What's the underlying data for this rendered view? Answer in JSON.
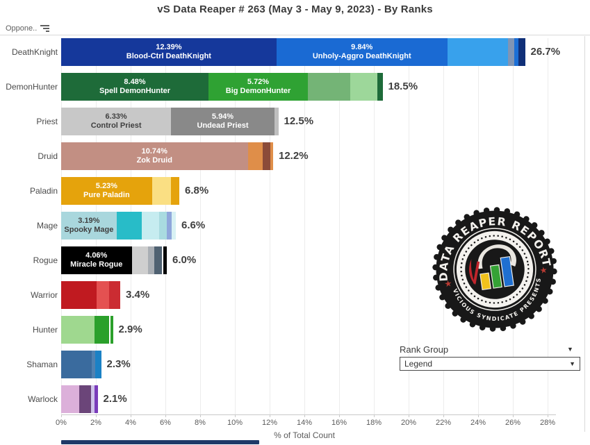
{
  "header": {
    "title": "vS Data Reaper #  263 (May 3 - May 9, 2023) - By Ranks",
    "column_label": "Oppone.."
  },
  "controls": {
    "rank_group_label": "Rank Group",
    "dropdown_value": "Legend",
    "caret": "▼"
  },
  "logo": {
    "top_text": "DATA REAPER REPORT",
    "bottom_text": "VICIOUS SYNDICATE PRESENTS",
    "star": "★",
    "ring_color": "#181818",
    "star_color": "#b93a32",
    "bar_colors": [
      "#f2c21c",
      "#35a235",
      "#1f6fd0"
    ],
    "scythe_color": "#c0252c"
  },
  "chart_data": {
    "type": "bar",
    "orientation": "horizontal",
    "title": "vS Data Reaper #  263 (May 3 - May 9, 2023) - By Ranks",
    "xlabel": "% of Total Count",
    "x_ticks": [
      "0%",
      "2%",
      "4%",
      "6%",
      "8%",
      "10%",
      "12%",
      "14%",
      "16%",
      "18%",
      "20%",
      "22%",
      "24%",
      "26%",
      "28%"
    ],
    "x_tick_step_pct": 2,
    "x_max_pct": 28.5,
    "grid": true,
    "rows": [
      {
        "class": "DeathKnight",
        "total_label": "26.7%",
        "total": 26.7,
        "segments": [
          {
            "value": 12.39,
            "pct_label": "12.39%",
            "name": "Blood-Ctrl DeathKnight",
            "color": "#15389b",
            "text_color": "#ffffff"
          },
          {
            "value": 9.84,
            "pct_label": "9.84%",
            "name": "Unholy-Aggro DeathKnight",
            "color": "#1a6ad3",
            "text_color": "#ffffff"
          },
          {
            "value": 3.5,
            "color": "#38a1ec"
          },
          {
            "value": 0.35,
            "color": "#8095b5"
          },
          {
            "value": 0.25,
            "color": "#1b6fd6"
          },
          {
            "value": 0.37,
            "color": "#102f78"
          }
        ]
      },
      {
        "class": "DemonHunter",
        "total_label": "18.5%",
        "total": 18.5,
        "segments": [
          {
            "value": 8.48,
            "pct_label": "8.48%",
            "name": "Spell DemonHunter",
            "color": "#1e6b39",
            "text_color": "#ffffff"
          },
          {
            "value": 5.72,
            "pct_label": "5.72%",
            "name": "Big DemonHunter",
            "color": "#2fa233",
            "text_color": "#ffffff"
          },
          {
            "value": 2.45,
            "color": "#74b476"
          },
          {
            "value": 1.55,
            "color": "#9dd79a"
          },
          {
            "value": 0.3,
            "color": "#1e6b39"
          }
        ]
      },
      {
        "class": "Priest",
        "total_label": "12.5%",
        "total": 12.5,
        "segments": [
          {
            "value": 6.33,
            "pct_label": "6.33%",
            "name": "Control Priest",
            "color": "#c8c8c8",
            "text_color": "#3f3f3f"
          },
          {
            "value": 5.94,
            "pct_label": "5.94%",
            "name": "Undead Priest",
            "color": "#898989",
            "text_color": "#ffffff"
          },
          {
            "value": 0.23,
            "color": "#bfbfbf"
          }
        ]
      },
      {
        "class": "Druid",
        "total_label": "12.2%",
        "total": 12.2,
        "segments": [
          {
            "value": 10.74,
            "pct_label": "10.74%",
            "name": "Zok Druid",
            "color": "#c28f83",
            "text_color": "#ffffff"
          },
          {
            "value": 0.85,
            "color": "#df8e49"
          },
          {
            "value": 0.45,
            "color": "#8b4b39"
          },
          {
            "value": 0.16,
            "color": "#df8e49"
          }
        ]
      },
      {
        "class": "Paladin",
        "total_label": "6.8%",
        "total": 6.8,
        "segments": [
          {
            "value": 5.23,
            "pct_label": "5.23%",
            "name": "Pure Paladin",
            "color": "#e5a30c",
            "text_color": "#ffffff"
          },
          {
            "value": 1.1,
            "color": "#fadf83"
          },
          {
            "value": 0.47,
            "color": "#e5a30c"
          }
        ]
      },
      {
        "class": "Mage",
        "total_label": "6.6%",
        "total": 6.6,
        "segments": [
          {
            "value": 3.19,
            "pct_label": "3.19%",
            "name": "Spooky Mage",
            "color": "#a9d7dd",
            "text_color": "#3f3f3f"
          },
          {
            "value": 1.45,
            "color": "#28bcc8"
          },
          {
            "value": 1.0,
            "color": "#c6ecf0"
          },
          {
            "value": 0.45,
            "color": "#a9dbe0"
          },
          {
            "value": 0.25,
            "color": "#8fa7db"
          },
          {
            "value": 0.26,
            "color": "#d8f1f4"
          }
        ]
      },
      {
        "class": "Rogue",
        "total_label": "6.0%",
        "total": 6.0,
        "segments": [
          {
            "value": 4.06,
            "pct_label": "4.06%",
            "name": "Miracle Rogue",
            "color": "#000000",
            "text_color": "#ffffff"
          },
          {
            "value": 0.95,
            "color": "#cfcfcf"
          },
          {
            "value": 0.35,
            "color": "#a9aeb4"
          },
          {
            "value": 0.45,
            "color": "#4f6171"
          },
          {
            "value": 0.19,
            "color": "#000000",
            "gap_before": true
          }
        ]
      },
      {
        "class": "Warrior",
        "total_label": "3.4%",
        "total": 3.4,
        "segments": [
          {
            "value": 2.05,
            "color": "#c01a20"
          },
          {
            "value": 0.72,
            "color": "#e45151"
          },
          {
            "value": 0.63,
            "color": "#cb2c32"
          }
        ]
      },
      {
        "class": "Hunter",
        "total_label": "2.9%",
        "total": 2.9,
        "segments": [
          {
            "value": 1.9,
            "color": "#9fd88f"
          },
          {
            "value": 0.85,
            "color": "#2ba02b"
          },
          {
            "value": 0.15,
            "color": "#2ba02b",
            "gap_before": true
          }
        ]
      },
      {
        "class": "Shaman",
        "total_label": "2.3%",
        "total": 2.3,
        "segments": [
          {
            "value": 1.75,
            "color": "#3a6b9e"
          },
          {
            "value": 0.2,
            "color": "#5181b0"
          },
          {
            "value": 0.35,
            "color": "#1b81c5"
          }
        ]
      },
      {
        "class": "Warlock",
        "total_label": "2.1%",
        "total": 2.1,
        "segments": [
          {
            "value": 1.05,
            "color": "#dcb0da"
          },
          {
            "value": 0.65,
            "color": "#6b4579"
          },
          {
            "value": 0.2,
            "color": "#cfc2ea"
          },
          {
            "value": 0.2,
            "color": "#7a3cba"
          }
        ]
      }
    ]
  }
}
